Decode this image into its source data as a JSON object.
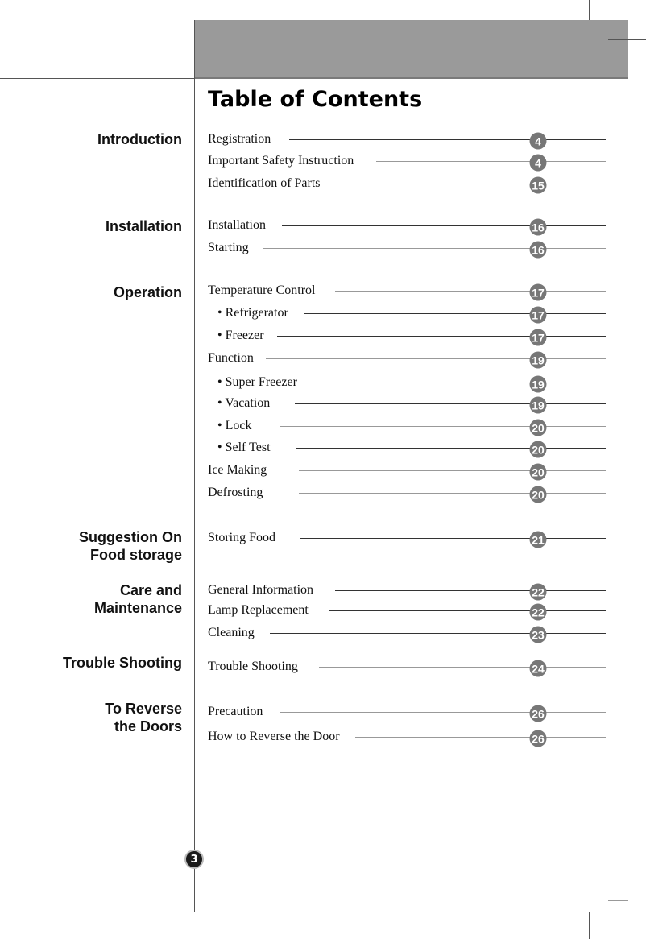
{
  "title": "Table of Contents",
  "page_number": "3",
  "sections": [
    {
      "lines": [
        "Introduction"
      ]
    },
    {
      "lines": [
        "Installation"
      ]
    },
    {
      "lines": [
        "Operation"
      ]
    },
    {
      "lines": [
        "Suggestion On",
        "Food storage"
      ]
    },
    {
      "lines": [
        "Care and",
        "Maintenance"
      ]
    },
    {
      "lines": [
        "Trouble Shooting"
      ]
    },
    {
      "lines": [
        "To Reverse",
        "the Doors"
      ]
    }
  ],
  "entries": [
    {
      "label": "Registration",
      "page": "4"
    },
    {
      "label": "Important Safety Instruction",
      "page": "4"
    },
    {
      "label": "Identification of Parts",
      "page": "15"
    },
    {
      "label": "Installation",
      "page": "16"
    },
    {
      "label": "Starting",
      "page": "16"
    },
    {
      "label": "Temperature Control",
      "page": "17"
    },
    {
      "label": "• Refrigerator",
      "page": "17"
    },
    {
      "label": "• Freezer",
      "page": "17"
    },
    {
      "label": "Function",
      "page": "19"
    },
    {
      "label": "• Super Freezer",
      "page": "19"
    },
    {
      "label": "• Vacation",
      "page": "19"
    },
    {
      "label": "• Lock",
      "page": "20"
    },
    {
      "label": "• Self Test",
      "page": "20"
    },
    {
      "label": "Ice Making",
      "page": "20"
    },
    {
      "label": "Defrosting",
      "page": "20"
    },
    {
      "label": "Storing Food",
      "page": "21"
    },
    {
      "label": "General Information",
      "page": "22"
    },
    {
      "label": "Lamp Replacement",
      "page": "22"
    },
    {
      "label": "Cleaning",
      "page": "23"
    },
    {
      "label": "Trouble Shooting",
      "page": "24"
    },
    {
      "label": "Precaution",
      "page": "26"
    },
    {
      "label": "How to Reverse the Door",
      "page": "26"
    }
  ],
  "colors": {
    "header_band": "#9a9a9a",
    "badge": "#777777",
    "page_badge": "#1a1a1a"
  }
}
